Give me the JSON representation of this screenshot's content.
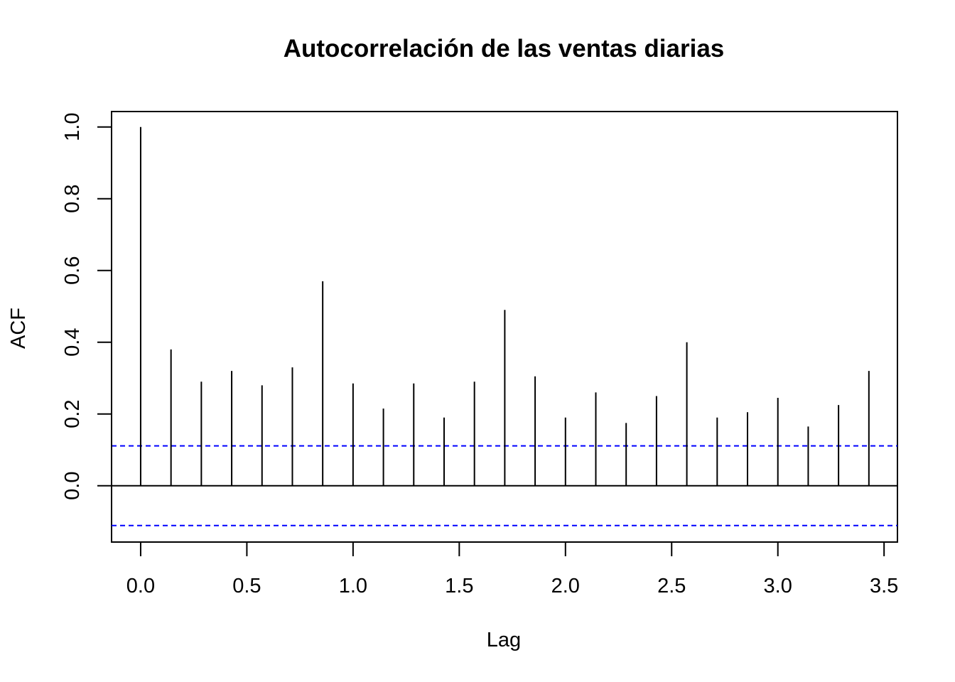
{
  "chart_data": {
    "type": "bar",
    "title": "Autocorrelación de las ventas diarias",
    "xlabel": "Lag",
    "ylabel": "ACF",
    "x": [
      0.0,
      0.1429,
      0.2857,
      0.4286,
      0.5714,
      0.7143,
      0.8571,
      1.0,
      1.1429,
      1.2857,
      1.4286,
      1.5714,
      1.7143,
      1.8571,
      2.0,
      2.1429,
      2.2857,
      2.4286,
      2.5714,
      2.7143,
      2.8571,
      3.0,
      3.1429,
      3.2857,
      3.4286
    ],
    "values": [
      1.0,
      0.38,
      0.29,
      0.32,
      0.28,
      0.33,
      0.57,
      0.285,
      0.215,
      0.285,
      0.19,
      0.29,
      0.49,
      0.305,
      0.19,
      0.26,
      0.175,
      0.25,
      0.4,
      0.19,
      0.205,
      0.245,
      0.165,
      0.225,
      0.32
    ],
    "confidence_bounds": [
      0.111,
      -0.111
    ],
    "xlim": [
      -0.137,
      3.563
    ],
    "ylim": [
      -0.157,
      1.043
    ],
    "x_ticks": [
      0.0,
      0.5,
      1.0,
      1.5,
      2.0,
      2.5,
      3.0,
      3.5
    ],
    "x_tick_labels": [
      "0.0",
      "0.5",
      "1.0",
      "1.5",
      "2.0",
      "2.5",
      "3.0",
      "3.5"
    ],
    "y_ticks": [
      0.0,
      0.2,
      0.4,
      0.6,
      0.8,
      1.0
    ],
    "y_tick_labels": [
      "0.0",
      "0.2",
      "0.4",
      "0.6",
      "0.8",
      "1.0"
    ],
    "bound_color": "#0000ff",
    "spike_color": "#000000",
    "grid": false,
    "legend": "none"
  }
}
